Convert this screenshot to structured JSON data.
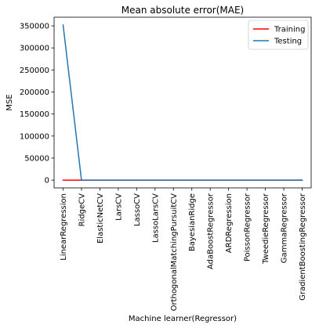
{
  "chart_data": {
    "type": "line",
    "title": "Mean absolute error(MAE)",
    "xlabel": "Machine learner(Regressor)",
    "ylabel": "MSE",
    "categories": [
      "LinearRegression",
      "RidgeCV",
      "ElasticNetCV",
      "LarsCV",
      "LassoCV",
      "LassoLarsCV",
      "OrthogonalMatchingPursuitCV",
      "BayesianRidge",
      "AdaBoostRegressor",
      "ARDRegression",
      "PoissonRegressor",
      "TweedieRegressor",
      "GammaRegressor",
      "GradientBoostingRegressor"
    ],
    "series": [
      {
        "name": "Training",
        "color": "#ff0000",
        "values": [
          0,
          0,
          0,
          0,
          0,
          0,
          0,
          0,
          0,
          0,
          0,
          0,
          0,
          0
        ]
      },
      {
        "name": "Testing",
        "color": "#1f77b4",
        "values": [
          352000,
          0,
          0,
          0,
          0,
          0,
          0,
          0,
          0,
          0,
          0,
          0,
          0,
          0
        ]
      }
    ],
    "yticks": [
      0,
      50000,
      100000,
      150000,
      200000,
      250000,
      300000,
      350000
    ],
    "ylim": [
      -17600,
      369600
    ],
    "legend_position": "upper right",
    "grid": false
  }
}
